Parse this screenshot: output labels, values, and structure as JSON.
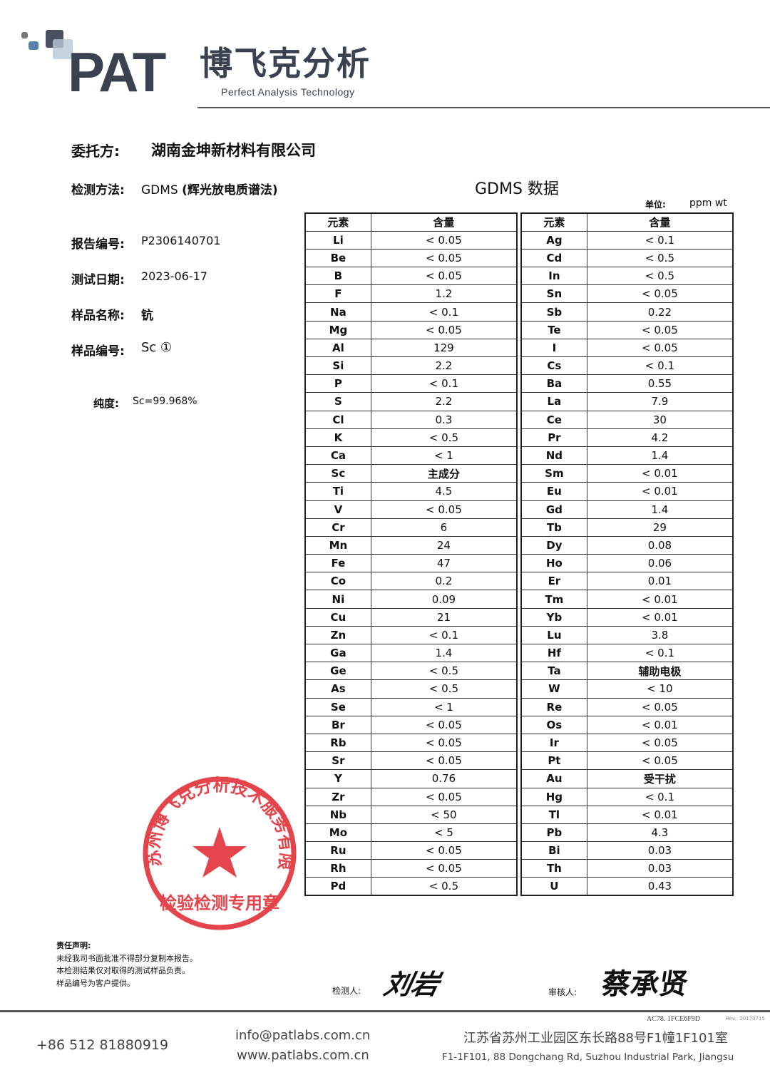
{
  "header": {
    "logo_main": "PAT",
    "logo_cn": "博飞克分析",
    "logo_en": "Perfect Analysis Technology"
  },
  "info": {
    "client_label": "委托方:",
    "client": "湖南金坤新材料有限公司",
    "method_label": "检测方法:",
    "method_prefix": "GDMS",
    "method_suffix": "(辉光放电质谱法)",
    "report_label": "报告编号:",
    "report": "P2306140701",
    "date_label": "测试日期:",
    "date": "2023-06-17",
    "sample_name_label": "样品名称:",
    "sample_name": "钪",
    "sample_no_label": "样品编号:",
    "sample_no": "Sc ①",
    "purity_label": "纯度:",
    "purity": "Sc=99.968%"
  },
  "table_title": "GDMS 数据",
  "unit_label": "单位:",
  "unit": "ppm wt",
  "columns": {
    "element": "元素",
    "content": "含量"
  },
  "left_rows": [
    [
      "Li",
      "< 0.05"
    ],
    [
      "Be",
      "< 0.05"
    ],
    [
      "B",
      "< 0.05"
    ],
    [
      "F",
      "1.2"
    ],
    [
      "Na",
      "< 0.1"
    ],
    [
      "Mg",
      "< 0.05"
    ],
    [
      "Al",
      "129"
    ],
    [
      "Si",
      "2.2"
    ],
    [
      "P",
      "< 0.1"
    ],
    [
      "S",
      "2.2"
    ],
    [
      "Cl",
      "0.3"
    ],
    [
      "K",
      "< 0.5"
    ],
    [
      "Ca",
      "< 1"
    ],
    [
      "Sc",
      "主成分"
    ],
    [
      "Ti",
      "4.5"
    ],
    [
      "V",
      "< 0.05"
    ],
    [
      "Cr",
      "6"
    ],
    [
      "Mn",
      "24"
    ],
    [
      "Fe",
      "47"
    ],
    [
      "Co",
      "0.2"
    ],
    [
      "Ni",
      "0.09"
    ],
    [
      "Cu",
      "21"
    ],
    [
      "Zn",
      "< 0.1"
    ],
    [
      "Ga",
      "1.4"
    ],
    [
      "Ge",
      "< 0.5"
    ],
    [
      "As",
      "< 0.5"
    ],
    [
      "Se",
      "< 1"
    ],
    [
      "Br",
      "< 0.05"
    ],
    [
      "Rb",
      "< 0.05"
    ],
    [
      "Sr",
      "< 0.05"
    ],
    [
      "Y",
      "0.76"
    ],
    [
      "Zr",
      "< 0.05"
    ],
    [
      "Nb",
      "< 50"
    ],
    [
      "Mo",
      "< 5"
    ],
    [
      "Ru",
      "< 0.05"
    ],
    [
      "Rh",
      "< 0.05"
    ],
    [
      "Pd",
      "< 0.5"
    ]
  ],
  "right_rows": [
    [
      "Ag",
      "< 0.1"
    ],
    [
      "Cd",
      "< 0.5"
    ],
    [
      "In",
      "< 0.5"
    ],
    [
      "Sn",
      "< 0.05"
    ],
    [
      "Sb",
      "0.22"
    ],
    [
      "Te",
      "< 0.05"
    ],
    [
      "I",
      "< 0.05"
    ],
    [
      "Cs",
      "< 0.1"
    ],
    [
      "Ba",
      "0.55"
    ],
    [
      "La",
      "7.9"
    ],
    [
      "Ce",
      "30"
    ],
    [
      "Pr",
      "4.2"
    ],
    [
      "Nd",
      "1.4"
    ],
    [
      "Sm",
      "< 0.01"
    ],
    [
      "Eu",
      "< 0.01"
    ],
    [
      "Gd",
      "1.4"
    ],
    [
      "Tb",
      "29"
    ],
    [
      "Dy",
      "0.08"
    ],
    [
      "Ho",
      "0.06"
    ],
    [
      "Er",
      "0.01"
    ],
    [
      "Tm",
      "< 0.01"
    ],
    [
      "Yb",
      "< 0.01"
    ],
    [
      "Lu",
      "3.8"
    ],
    [
      "Hf",
      "< 0.1"
    ],
    [
      "Ta",
      "辅助电极"
    ],
    [
      "W",
      "< 10"
    ],
    [
      "Re",
      "< 0.05"
    ],
    [
      "Os",
      "< 0.01"
    ],
    [
      "Ir",
      "< 0.05"
    ],
    [
      "Pt",
      "< 0.05"
    ],
    [
      "Au",
      "受干扰"
    ],
    [
      "Hg",
      "< 0.1"
    ],
    [
      "Tl",
      "< 0.01"
    ],
    [
      "Pb",
      "4.3"
    ],
    [
      "Bi",
      "0.03"
    ],
    [
      "Th",
      "0.03"
    ],
    [
      "U",
      "0.43"
    ]
  ],
  "stamp": {
    "outer": "苏州博飞克分析技术服务有限公司",
    "inner": "检验检测专用章",
    "color": "#e0242c"
  },
  "disclaimer": {
    "title": "责任声明:",
    "lines": [
      "未经我司书面批准不得部分复制本报告。",
      "本检测结果仅对取得的测试样品负责。",
      "样品编号为客户提供。"
    ]
  },
  "signatures": {
    "tester_label": "检测人:",
    "tester": "刘岩",
    "reviewer_label": "审核人:",
    "reviewer": "蔡承贤"
  },
  "footer": {
    "code": "AC78. 1FCE6F9D",
    "rev": "Rev.: 20170715",
    "phone": "+86 512 81880919",
    "email": "info@patlabs.com.cn",
    "web": "www.patlabs.com.cn",
    "address_cn": "江苏省苏州工业园区东长路88号F1幢1F101室",
    "address_en": "F1-1F101, 88 Dongchang Rd, Suzhou Industrial Park, Jiangsu"
  }
}
